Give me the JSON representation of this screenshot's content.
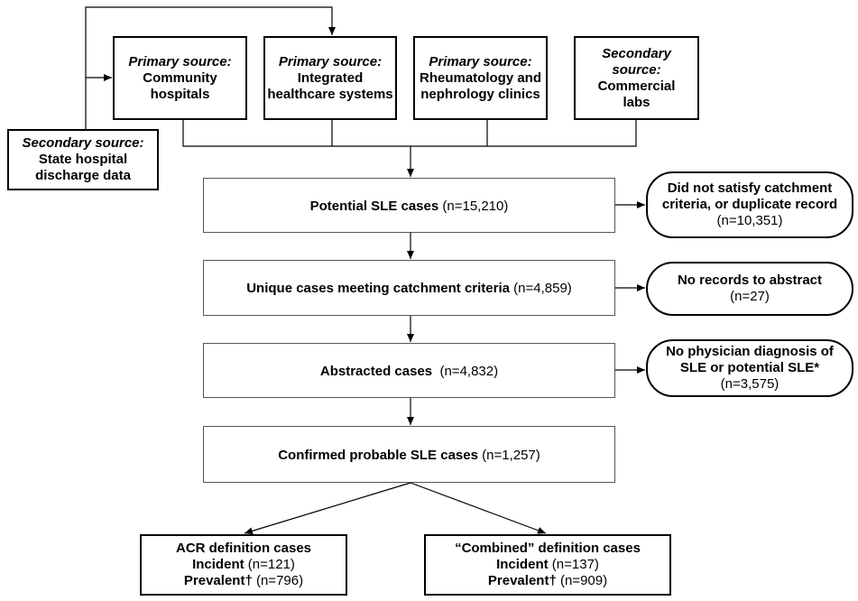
{
  "sources": [
    {
      "kind": "Primary source:",
      "name": "Community hospitals"
    },
    {
      "kind": "Primary source:",
      "name": "Integrated healthcare systems"
    },
    {
      "kind": "Primary source:",
      "name": "Rheumatology and nephrology clinics"
    },
    {
      "kind": "Secondary source:",
      "name": "Commercial labs"
    }
  ],
  "state_source": {
    "kind": "Secondary source:",
    "name": "State hospital discharge data"
  },
  "steps": [
    {
      "label": "Potential SLE cases",
      "count": "(n=15,210)"
    },
    {
      "label": "Unique cases meeting catchment criteria",
      "count": "(n=4,859)"
    },
    {
      "label": "Abstracted cases",
      "count": "(n=4,832)"
    },
    {
      "label": "Confirmed probable SLE cases",
      "count": "(n=1,257)"
    }
  ],
  "exclusions": [
    {
      "label": "Did not satisfy catchment criteria, or duplicate record",
      "count": "(n=10,351)"
    },
    {
      "label": "No records to abstract",
      "count": "(n=27)"
    },
    {
      "label": "No physician diagnosis of SLE or potential SLE*",
      "count": "(n=3,575)"
    }
  ],
  "outcomes": [
    {
      "title": "ACR definition cases",
      "rows": [
        {
          "label": "Incident",
          "count": "(n=121)"
        },
        {
          "label": "Prevalent†",
          "count": "(n=796)"
        }
      ]
    },
    {
      "title": "“Combined” definition cases",
      "rows": [
        {
          "label": "Incident",
          "count": "(n=137)"
        },
        {
          "label": "Prevalent†",
          "count": "(n=909)"
        }
      ]
    }
  ]
}
